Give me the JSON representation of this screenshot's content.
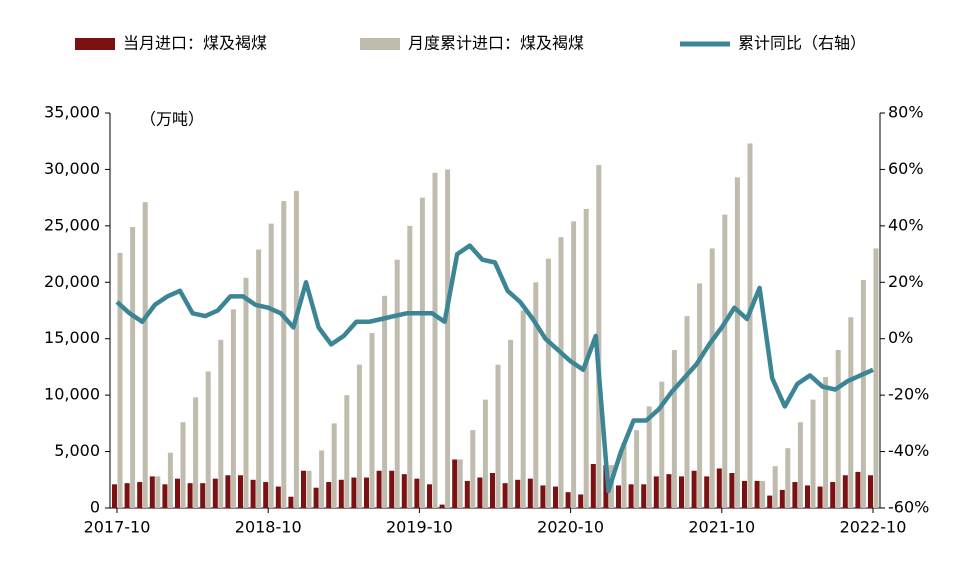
{
  "chart_data": {
    "type": "bar-line",
    "annotation": "（万吨）",
    "categories": [
      "2017-10",
      null,
      null,
      null,
      null,
      null,
      null,
      null,
      null,
      null,
      null,
      null,
      "2018-10",
      null,
      null,
      null,
      null,
      null,
      null,
      null,
      null,
      null,
      null,
      null,
      "2019-10",
      null,
      null,
      null,
      null,
      null,
      null,
      null,
      null,
      null,
      null,
      null,
      "2020-10",
      null,
      null,
      null,
      null,
      null,
      null,
      null,
      null,
      null,
      null,
      null,
      "2021-10",
      null,
      null,
      null,
      null,
      null,
      null,
      null,
      null,
      null,
      null,
      null,
      "2022-10"
    ],
    "series": [
      {
        "name": "当月进口：煤及褐煤",
        "color": "#7b1113",
        "kind": "bar",
        "values": [
          2100,
          2200,
          2300,
          2800,
          2100,
          2600,
          2200,
          2200,
          2600,
          2900,
          2900,
          2500,
          2300,
          1900,
          1000,
          3300,
          1800,
          2300,
          2500,
          2700,
          2700,
          3300,
          3300,
          3000,
          2600,
          2100,
          300,
          4300,
          2400,
          2700,
          3100,
          2200,
          2500,
          2600,
          2000,
          1900,
          1400,
          1200,
          3900,
          3800,
          2000,
          2100,
          2100,
          2800,
          3000,
          2800,
          3300,
          2800,
          3500,
          3100,
          2400,
          2400,
          1100,
          1600,
          2300,
          2000,
          1900,
          2300,
          2900,
          3200,
          2900
        ]
      },
      {
        "name": "月度累计进口：煤及褐煤",
        "color": "#bfbcae",
        "kind": "bar",
        "values": [
          22600,
          24900,
          27100,
          2800,
          4900,
          7600,
          9800,
          12100,
          14900,
          17600,
          20400,
          22900,
          25200,
          27200,
          28100,
          3300,
          5100,
          7500,
          10000,
          12700,
          15500,
          18800,
          22000,
          25000,
          27500,
          29700,
          30000,
          4300,
          6900,
          9600,
          12700,
          14900,
          17500,
          20000,
          22100,
          24000,
          25400,
          26500,
          30400,
          3800,
          5800,
          6900,
          9000,
          11200,
          14000,
          17000,
          19900,
          23000,
          26000,
          29300,
          32300,
          2400,
          3700,
          5300,
          7600,
          9600,
          11600,
          14000,
          16900,
          20200,
          23000
        ]
      },
      {
        "name": "累计同比（右轴）",
        "color": "#3c8595",
        "kind": "line",
        "axis": "y2",
        "values": [
          13,
          9,
          6,
          12,
          15,
          17,
          9,
          8,
          10,
          15,
          15,
          12,
          11,
          9,
          4,
          20,
          4,
          -2,
          1,
          6,
          6,
          7,
          8,
          9,
          9,
          9,
          6,
          30,
          33,
          28,
          27,
          17,
          13,
          7,
          0,
          -4,
          -8,
          -11,
          1,
          -54,
          -40,
          -29,
          -29,
          -25,
          -19,
          -14,
          -9,
          -2,
          4,
          11,
          7,
          18,
          -14,
          -24,
          -16,
          -13,
          -17,
          -18,
          -15,
          -13,
          -11
        ]
      }
    ],
    "ylim": [
      0,
      35000
    ],
    "yticks": [
      0,
      {
        "value": 5000,
        "label": "5,000"
      },
      {
        "value": 10000,
        "label": "10,000"
      },
      {
        "value": 15000,
        "label": "15,000"
      },
      {
        "value": 20000,
        "label": "20,000"
      },
      {
        "value": 25000,
        "label": "25,000"
      },
      {
        "value": 30000,
        "label": "30,000"
      },
      {
        "value": 35000,
        "label": "35,000"
      }
    ],
    "y2lim": [
      -60,
      80
    ],
    "y2ticks": [
      {
        "value": -60,
        "label": "-60%"
      },
      {
        "value": -40,
        "label": "-40%"
      },
      {
        "value": -20,
        "label": "-20%"
      },
      {
        "value": 0,
        "label": "0%"
      },
      {
        "value": 20,
        "label": "20%"
      },
      {
        "value": 40,
        "label": "40%"
      },
      {
        "value": 60,
        "label": "60%"
      },
      {
        "value": 80,
        "label": "80%"
      }
    ],
    "legend": "top"
  }
}
